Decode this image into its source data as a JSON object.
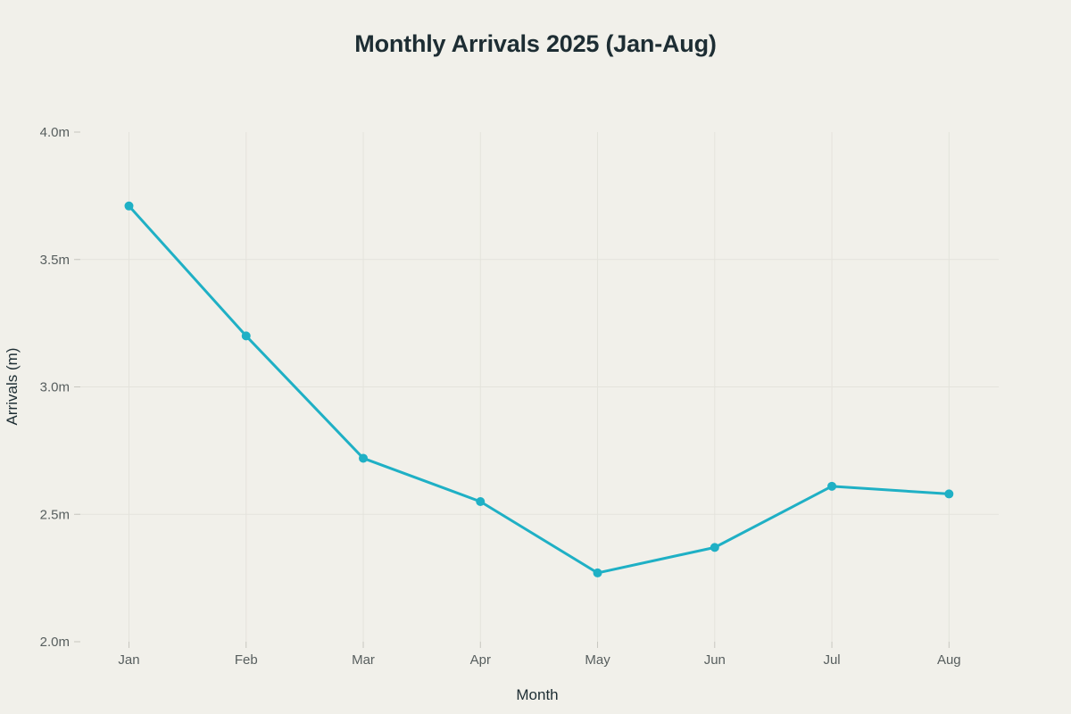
{
  "chart_data": {
    "type": "line",
    "title": "Monthly Arrivals 2025 (Jan-Aug)",
    "xlabel": "Month",
    "ylabel": "Arrivals (m)",
    "categories": [
      "Jan",
      "Feb",
      "Mar",
      "Apr",
      "May",
      "Jun",
      "Jul",
      "Aug"
    ],
    "values": [
      3.71,
      3.2,
      2.72,
      2.55,
      2.27,
      2.37,
      2.61,
      2.58
    ],
    "ylim": [
      2.0,
      4.0
    ],
    "yticks": [
      2.0,
      2.5,
      3.0,
      3.5,
      4.0
    ],
    "ytick_labels": [
      "2.0m",
      "2.5m",
      "3.0m",
      "3.5m",
      "4.0m"
    ],
    "grid": true,
    "legend": false,
    "marker": "circle"
  },
  "colors": {
    "background": "#f1f0ea",
    "gridline": "#e4e3dc",
    "tick_mark": "#c7c6bf",
    "tick_label": "#575e5e",
    "title_text": "#1d2d33",
    "line": "#1fb0c5"
  }
}
